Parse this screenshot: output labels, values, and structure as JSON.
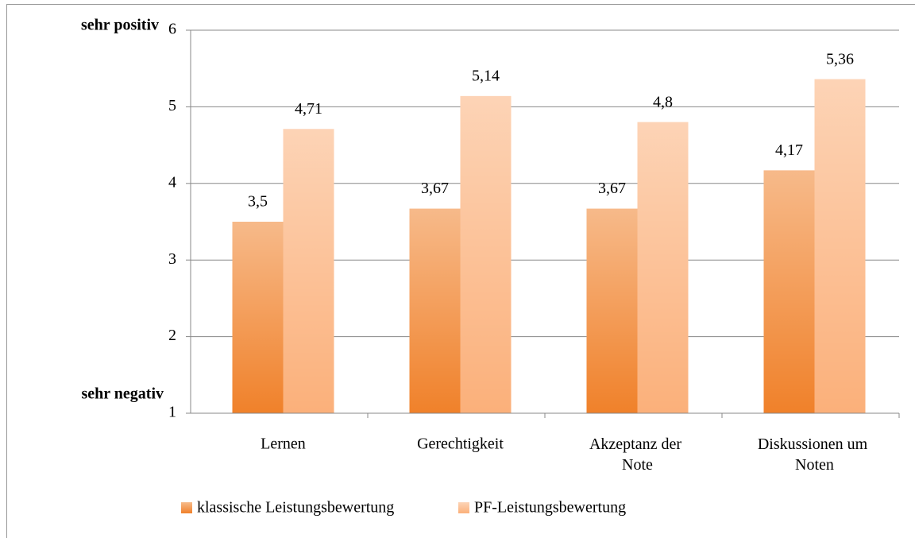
{
  "chart_data": {
    "type": "bar",
    "annotations": [
      "sehr positiv",
      "sehr negativ"
    ],
    "categories": [
      "Lernen",
      "Gerechtigkeit",
      "Akzeptanz der Note",
      "Diskussionen um Noten"
    ],
    "series": [
      {
        "name": "klassische Leistungsbewertung",
        "color": "#f0812a",
        "values": [
          3.5,
          3.67,
          3.67,
          4.17
        ],
        "value_labels": [
          "3,5",
          "3,67",
          "3,67",
          "4,17"
        ]
      },
      {
        "name": "PF-Leistungsbewertung",
        "color": "#fbb07a",
        "values": [
          4.71,
          5.14,
          4.8,
          5.36
        ],
        "value_labels": [
          "4,71",
          "5,14",
          "4,8",
          "5,36"
        ]
      }
    ],
    "ylim": [
      1,
      6
    ],
    "yticks": [
      1,
      2,
      3,
      4,
      5,
      6
    ],
    "grid": true,
    "legend": "bottom"
  }
}
